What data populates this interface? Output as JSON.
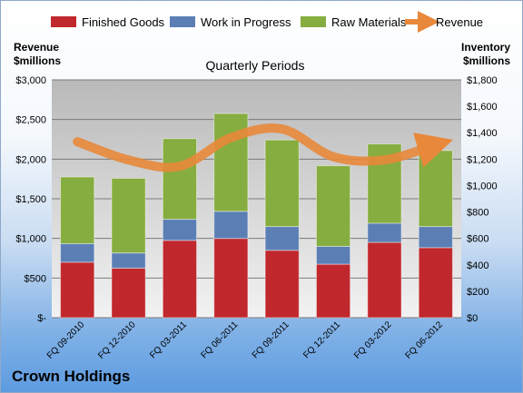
{
  "company": "Crown Holdings",
  "chart_data": {
    "type": "bar",
    "stacked": true,
    "subtitle": "Quarterly Periods",
    "left_axis_title": [
      "Revenue",
      "$millions"
    ],
    "right_axis_title": [
      "Inventory",
      "$millions"
    ],
    "categories": [
      "FQ 09-2010",
      "FQ 12-2010",
      "FQ 03-2011",
      "FQ 06-2011",
      "FQ 09-2011",
      "FQ 12-2011",
      "FQ 03-2012",
      "FQ 06-2012"
    ],
    "left_ticks": [
      "$-",
      "$500",
      "$1,000",
      "$1,500",
      "$2,000",
      "$2,500",
      "$3,000"
    ],
    "right_ticks": [
      "$0",
      "$200",
      "$400",
      "$600",
      "$800",
      "$1,000",
      "$1,200",
      "$1,400",
      "$1,600",
      "$1,800"
    ],
    "ylim_left": [
      0,
      3000
    ],
    "ylim_right": [
      0,
      1800
    ],
    "series": [
      {
        "name": "Finished Goods",
        "axis": "right",
        "color": "#c0282d",
        "values": [
          420,
          375,
          585,
          600,
          510,
          405,
          570,
          530
        ]
      },
      {
        "name": "Work in Progress",
        "axis": "right",
        "color": "#5b7fb5",
        "values": [
          140,
          115,
          160,
          205,
          180,
          135,
          145,
          160
        ]
      },
      {
        "name": "Raw Materials",
        "axis": "right",
        "color": "#86ad3f",
        "values": [
          505,
          565,
          610,
          740,
          655,
          610,
          600,
          575
        ]
      },
      {
        "name": "Revenue",
        "type": "line",
        "axis": "left",
        "color": "#e8883a",
        "values": [
          2220,
          1990,
          1910,
          2270,
          2380,
          2030,
          1990,
          2180
        ]
      }
    ],
    "legend_position": "top",
    "grid": true
  }
}
